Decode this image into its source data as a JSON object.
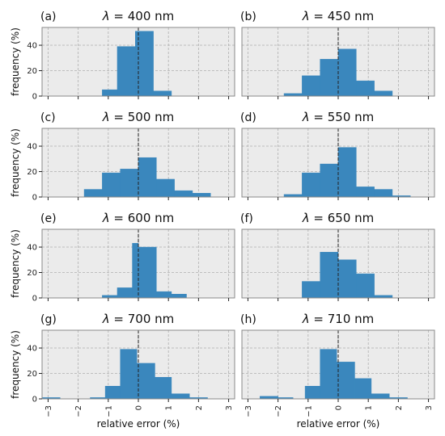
{
  "chart_data": {
    "type": "bar",
    "xlabel": "relative error (%)",
    "ylabel": "frequency (%)",
    "xlim": [
      -3.2,
      3.2
    ],
    "ylim": [
      0,
      54
    ],
    "xticks": [
      -3,
      -2,
      -1,
      0,
      1,
      2,
      3
    ],
    "yticks": [
      0,
      20,
      40
    ],
    "grid": true,
    "bar_color": "#3a87bd",
    "background_color": "#ebebeb",
    "grid_color": "#b0b0b0",
    "reference_line": {
      "x": 0,
      "style": "dashed",
      "color": "#222222"
    },
    "panels": [
      {
        "label": "(a)",
        "title_prefix": "λ",
        "title_value": " = 400 nm",
        "bins": [
          {
            "x0": -1.2,
            "x1": -0.7,
            "value": 5
          },
          {
            "x0": -0.7,
            "x1": -0.1,
            "value": 39
          },
          {
            "x0": -0.1,
            "x1": 0.5,
            "value": 51
          },
          {
            "x0": 0.5,
            "x1": 1.1,
            "value": 4
          }
        ]
      },
      {
        "label": "(b)",
        "title_prefix": "λ",
        "title_value": " = 450 nm",
        "bins": [
          {
            "x0": -1.8,
            "x1": -1.2,
            "value": 2
          },
          {
            "x0": -1.2,
            "x1": -0.6,
            "value": 16
          },
          {
            "x0": -0.6,
            "x1": 0.0,
            "value": 29
          },
          {
            "x0": 0.0,
            "x1": 0.6,
            "value": 37
          },
          {
            "x0": 0.6,
            "x1": 1.2,
            "value": 12
          },
          {
            "x0": 1.2,
            "x1": 1.8,
            "value": 4
          }
        ]
      },
      {
        "label": "(c)",
        "title_prefix": "λ",
        "title_value": " = 500 nm",
        "bins": [
          {
            "x0": -1.8,
            "x1": -1.2,
            "value": 6
          },
          {
            "x0": -1.2,
            "x1": -0.6,
            "value": 19
          },
          {
            "x0": -0.6,
            "x1": 0.0,
            "value": 22
          },
          {
            "x0": 0.0,
            "x1": 0.6,
            "value": 31
          },
          {
            "x0": 0.6,
            "x1": 1.2,
            "value": 14
          },
          {
            "x0": 1.2,
            "x1": 1.8,
            "value": 5
          },
          {
            "x0": 1.8,
            "x1": 2.4,
            "value": 3
          }
        ]
      },
      {
        "label": "(d)",
        "title_prefix": "λ",
        "title_value": " = 550 nm",
        "bins": [
          {
            "x0": -1.8,
            "x1": -1.2,
            "value": 2
          },
          {
            "x0": -1.2,
            "x1": -0.6,
            "value": 19
          },
          {
            "x0": -0.6,
            "x1": 0.0,
            "value": 26
          },
          {
            "x0": 0.0,
            "x1": 0.6,
            "value": 39
          },
          {
            "x0": 0.6,
            "x1": 1.2,
            "value": 8
          },
          {
            "x0": 1.2,
            "x1": 1.8,
            "value": 6
          },
          {
            "x0": 1.8,
            "x1": 2.4,
            "value": 1
          }
        ]
      },
      {
        "label": "(e)",
        "title_prefix": "λ",
        "title_value": " = 600 nm",
        "bins": [
          {
            "x0": -1.2,
            "x1": -0.7,
            "value": 2
          },
          {
            "x0": -0.7,
            "x1": -0.2,
            "value": 8
          },
          {
            "x0": -0.2,
            "x1": 0.0,
            "value": 43
          },
          {
            "x0": 0.0,
            "x1": 0.6,
            "value": 40
          },
          {
            "x0": 0.6,
            "x1": 1.1,
            "value": 5
          },
          {
            "x0": 1.1,
            "x1": 1.6,
            "value": 3
          }
        ]
      },
      {
        "label": "(f)",
        "title_prefix": "λ",
        "title_value": " = 650 nm",
        "bins": [
          {
            "x0": -1.2,
            "x1": -0.6,
            "value": 13
          },
          {
            "x0": -0.6,
            "x1": 0.0,
            "value": 36
          },
          {
            "x0": 0.0,
            "x1": 0.6,
            "value": 30
          },
          {
            "x0": 0.6,
            "x1": 1.2,
            "value": 19
          },
          {
            "x0": 1.2,
            "x1": 1.8,
            "value": 2
          }
        ]
      },
      {
        "label": "(g)",
        "title_prefix": "λ",
        "title_value": " = 700 nm",
        "bins": [
          {
            "x0": -3.2,
            "x1": -2.6,
            "value": 1
          },
          {
            "x0": -1.6,
            "x1": -1.1,
            "value": 1
          },
          {
            "x0": -1.1,
            "x1": -0.6,
            "value": 10
          },
          {
            "x0": -0.6,
            "x1": -0.05,
            "value": 39
          },
          {
            "x0": -0.05,
            "x1": 0.55,
            "value": 28
          },
          {
            "x0": 0.55,
            "x1": 1.1,
            "value": 17
          },
          {
            "x0": 1.1,
            "x1": 1.7,
            "value": 4
          },
          {
            "x0": 1.7,
            "x1": 2.3,
            "value": 1
          }
        ]
      },
      {
        "label": "(h)",
        "title_prefix": "λ",
        "title_value": " = 710 nm",
        "bins": [
          {
            "x0": -2.6,
            "x1": -2.0,
            "value": 2
          },
          {
            "x0": -2.0,
            "x1": -1.5,
            "value": 1
          },
          {
            "x0": -1.1,
            "x1": -0.6,
            "value": 10
          },
          {
            "x0": -0.6,
            "x1": -0.05,
            "value": 39
          },
          {
            "x0": -0.05,
            "x1": 0.55,
            "value": 29
          },
          {
            "x0": 0.55,
            "x1": 1.1,
            "value": 16
          },
          {
            "x0": 1.1,
            "x1": 1.7,
            "value": 4
          },
          {
            "x0": 1.7,
            "x1": 2.3,
            "value": 1
          }
        ]
      }
    ]
  }
}
